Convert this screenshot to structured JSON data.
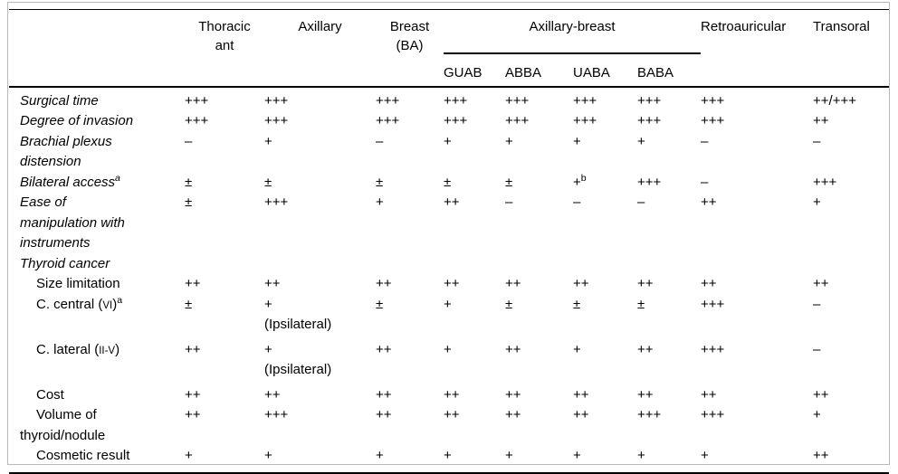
{
  "table": {
    "header": {
      "columns": [
        "Thoracic\nant",
        "Axillary",
        "Breast\n(BA)"
      ],
      "group": {
        "label": "Axillary-breast",
        "children": [
          "GUAB",
          "ABBA",
          "UABA",
          "BABA"
        ]
      },
      "columns_right": [
        "Retroauricular",
        "Transoral"
      ]
    },
    "rows": [
      {
        "label": "Surgical time",
        "italic": true,
        "indent": false,
        "values": [
          "+++",
          "+++",
          "+++",
          "+++",
          "+++",
          "+++",
          "+++",
          "+++",
          "++/+++"
        ]
      },
      {
        "label": "Degree of invasion",
        "italic": true,
        "indent": false,
        "values": [
          "+++",
          "+++",
          "+++",
          "+++",
          "+++",
          "+++",
          "+++",
          "+++",
          "++"
        ]
      },
      {
        "label": "Brachial plexus\ndistension",
        "italic": true,
        "indent": false,
        "values": [
          "–",
          "+",
          "–",
          "+",
          "+",
          "+",
          "+",
          "–",
          "–"
        ]
      },
      {
        "label": "Bilateral access",
        "label_sup": "a",
        "italic": true,
        "indent": false,
        "values": [
          "±",
          "±",
          "±",
          "±",
          "±",
          {
            "v": "+",
            "sup": "b"
          },
          "+++",
          "–",
          "+++"
        ]
      },
      {
        "label": "Ease of\nmanipulation with\ninstruments",
        "italic": true,
        "indent": false,
        "values": [
          "±",
          "+++",
          "+",
          "++",
          "–",
          "–",
          "–",
          "++",
          "+"
        ]
      },
      {
        "label": "Thyroid cancer",
        "italic": true,
        "indent": false,
        "values": [
          "",
          "",
          "",
          "",
          "",
          "",
          "",
          "",
          ""
        ]
      },
      {
        "label": "Size limitation",
        "italic": false,
        "indent": true,
        "values": [
          "++",
          "++",
          "++",
          "++",
          "++",
          "++",
          "++",
          "++",
          "++"
        ]
      },
      {
        "label": "C. central (",
        "roman": "VI",
        "label_after": ")",
        "label_sup": "a",
        "italic": false,
        "indent": true,
        "values": [
          "±",
          "+\n(Ipsilateral)",
          "±",
          "+",
          "±",
          "±",
          "±",
          "+++",
          "–"
        ]
      },
      {
        "label": "C. lateral (",
        "roman": "II-V",
        "label_after": ")",
        "italic": false,
        "indent": true,
        "values": [
          "++",
          "+\n(Ipsilateral)",
          "++",
          "+",
          "++",
          "+",
          "++",
          "+++",
          "–"
        ]
      },
      {
        "label": "Cost",
        "italic": false,
        "indent": true,
        "values": [
          "++",
          "++",
          "++",
          "++",
          "++",
          "++",
          "++",
          "++",
          "++"
        ]
      },
      {
        "label": "Volume of\nthyroid/nodule",
        "italic": false,
        "indent": true,
        "values": [
          "++",
          "+++",
          "++",
          "++",
          "++",
          "++",
          "+++",
          "+++",
          "+"
        ]
      },
      {
        "label": "Cosmetic result",
        "italic": false,
        "indent": true,
        "values": [
          "+",
          "+",
          "+",
          "+",
          "+",
          "+",
          "+",
          "+",
          "++"
        ]
      }
    ]
  }
}
